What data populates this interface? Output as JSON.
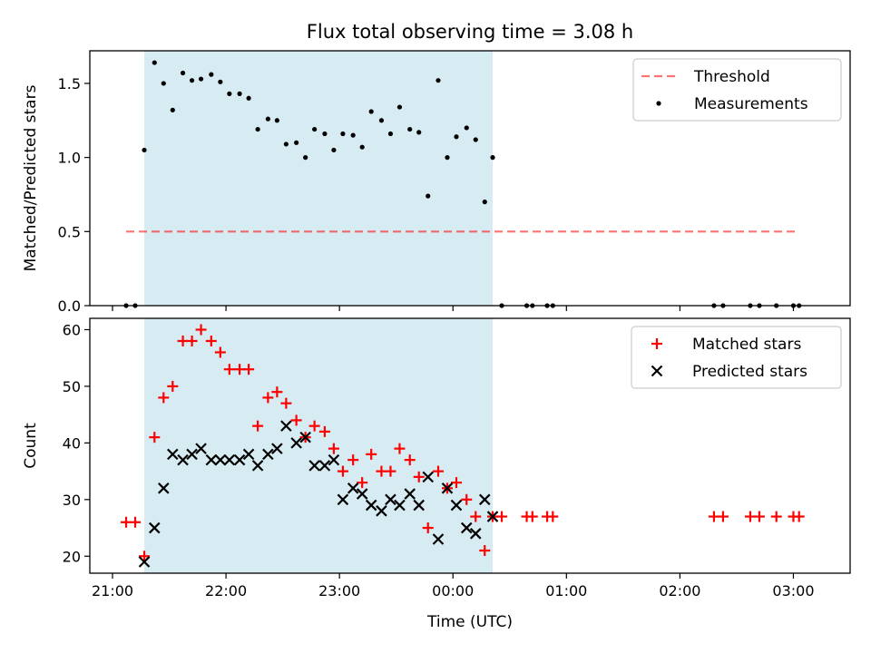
{
  "title": "Flux total observing time = 3.08 h",
  "colors": {
    "highlight": "#add8e6",
    "threshold": "#ff0000",
    "measurement": "#000000",
    "matched": "#ff0000",
    "predicted": "#000000"
  },
  "x_axis": {
    "label": "Time (UTC)",
    "range_hours": [
      20.8,
      27.5
    ],
    "ticks": [
      {
        "value": 21,
        "label": "21:00"
      },
      {
        "value": 22,
        "label": "22:00"
      },
      {
        "value": 23,
        "label": "23:00"
      },
      {
        "value": 24,
        "label": "00:00"
      },
      {
        "value": 25,
        "label": "01:00"
      },
      {
        "value": 26,
        "label": "02:00"
      },
      {
        "value": 27,
        "label": "03:00"
      }
    ]
  },
  "highlight_span_hours": [
    21.28,
    24.35
  ],
  "chart_data": [
    {
      "type": "scatter",
      "ylabel": "Matched/Predicted stars",
      "ylim": [
        0,
        1.72
      ],
      "yticks": [
        {
          "value": 0,
          "label": "0.0"
        },
        {
          "value": 0.5,
          "label": "0.5"
        },
        {
          "value": 1.0,
          "label": "1.0"
        },
        {
          "value": 1.5,
          "label": "1.5"
        }
      ],
      "legend": {
        "position": "upper right",
        "entries": [
          "Threshold",
          "Measurements"
        ]
      },
      "threshold": {
        "name": "Threshold",
        "value": 0.5,
        "x_range": [
          21.12,
          27.03
        ]
      },
      "series": [
        {
          "name": "Measurements",
          "x": [
            21.12,
            21.2,
            21.28,
            21.37,
            21.45,
            21.53,
            21.62,
            21.7,
            21.78,
            21.87,
            21.95,
            22.03,
            22.12,
            22.2,
            22.28,
            22.37,
            22.45,
            22.53,
            22.62,
            22.7,
            22.78,
            22.87,
            22.95,
            23.03,
            23.12,
            23.2,
            23.28,
            23.37,
            23.45,
            23.53,
            23.62,
            23.7,
            23.78,
            23.87,
            23.95,
            24.03,
            24.12,
            24.2,
            24.28,
            24.35,
            24.43,
            24.65,
            24.7,
            24.83,
            24.88,
            26.3,
            26.38,
            26.62,
            26.7,
            26.85,
            27.0,
            27.05
          ],
          "y": [
            0.0,
            0.0,
            1.05,
            1.64,
            1.5,
            1.32,
            1.57,
            1.52,
            1.53,
            1.56,
            1.51,
            1.43,
            1.43,
            1.4,
            1.19,
            1.26,
            1.25,
            1.09,
            1.1,
            1.0,
            1.19,
            1.16,
            1.05,
            1.16,
            1.15,
            1.07,
            1.31,
            1.25,
            1.16,
            1.34,
            1.19,
            1.17,
            0.74,
            1.52,
            1.0,
            1.14,
            1.2,
            1.12,
            0.7,
            1.0,
            0.0,
            0.0,
            0.0,
            0.0,
            0.0,
            0.0,
            0.0,
            0.0,
            0.0,
            0.0,
            0.0,
            0.0
          ]
        }
      ]
    },
    {
      "type": "scatter",
      "ylabel": "Count",
      "xlabel": "Time (UTC)",
      "ylim": [
        17,
        62
      ],
      "yticks": [
        {
          "value": 20,
          "label": "20"
        },
        {
          "value": 30,
          "label": "30"
        },
        {
          "value": 40,
          "label": "40"
        },
        {
          "value": 50,
          "label": "50"
        },
        {
          "value": 60,
          "label": "60"
        }
      ],
      "legend": {
        "position": "upper right",
        "entries": [
          "Matched stars",
          "Predicted stars"
        ]
      },
      "series": [
        {
          "name": "Matched stars",
          "marker": "+",
          "x": [
            21.12,
            21.2,
            21.28,
            21.37,
            21.45,
            21.53,
            21.62,
            21.7,
            21.78,
            21.87,
            21.95,
            22.03,
            22.12,
            22.2,
            22.28,
            22.37,
            22.45,
            22.53,
            22.62,
            22.7,
            22.78,
            22.87,
            22.95,
            23.03,
            23.12,
            23.2,
            23.28,
            23.37,
            23.45,
            23.53,
            23.62,
            23.7,
            23.78,
            23.87,
            23.95,
            24.03,
            24.12,
            24.2,
            24.28,
            24.35,
            24.43,
            24.65,
            24.7,
            24.83,
            24.88,
            26.3,
            26.38,
            26.62,
            26.7,
            26.85,
            27.0,
            27.05
          ],
          "y": [
            26,
            26,
            20,
            41,
            48,
            50,
            58,
            58,
            60,
            58,
            56,
            53,
            53,
            53,
            43,
            48,
            49,
            47,
            44,
            41,
            43,
            42,
            39,
            35,
            37,
            33,
            38,
            35,
            35,
            39,
            37,
            34,
            25,
            35,
            32,
            33,
            30,
            27,
            21,
            27,
            27,
            27,
            27,
            27,
            27,
            27,
            27,
            27,
            27,
            27,
            27,
            27
          ]
        },
        {
          "name": "Predicted stars",
          "marker": "x",
          "x": [
            21.28,
            21.37,
            21.45,
            21.53,
            21.62,
            21.7,
            21.78,
            21.87,
            21.95,
            22.03,
            22.12,
            22.2,
            22.28,
            22.37,
            22.45,
            22.53,
            22.62,
            22.7,
            22.78,
            22.87,
            22.95,
            23.03,
            23.12,
            23.2,
            23.28,
            23.37,
            23.45,
            23.53,
            23.62,
            23.7,
            23.78,
            23.87,
            23.95,
            24.03,
            24.12,
            24.2,
            24.28,
            24.35
          ],
          "y": [
            19,
            25,
            32,
            38,
            37,
            38,
            39,
            37,
            37,
            37,
            37,
            38,
            36,
            38,
            39,
            43,
            40,
            41,
            36,
            36,
            37,
            30,
            32,
            31,
            29,
            28,
            30,
            29,
            31,
            29,
            34,
            23,
            32,
            29,
            25,
            24,
            30,
            27
          ]
        }
      ]
    }
  ]
}
